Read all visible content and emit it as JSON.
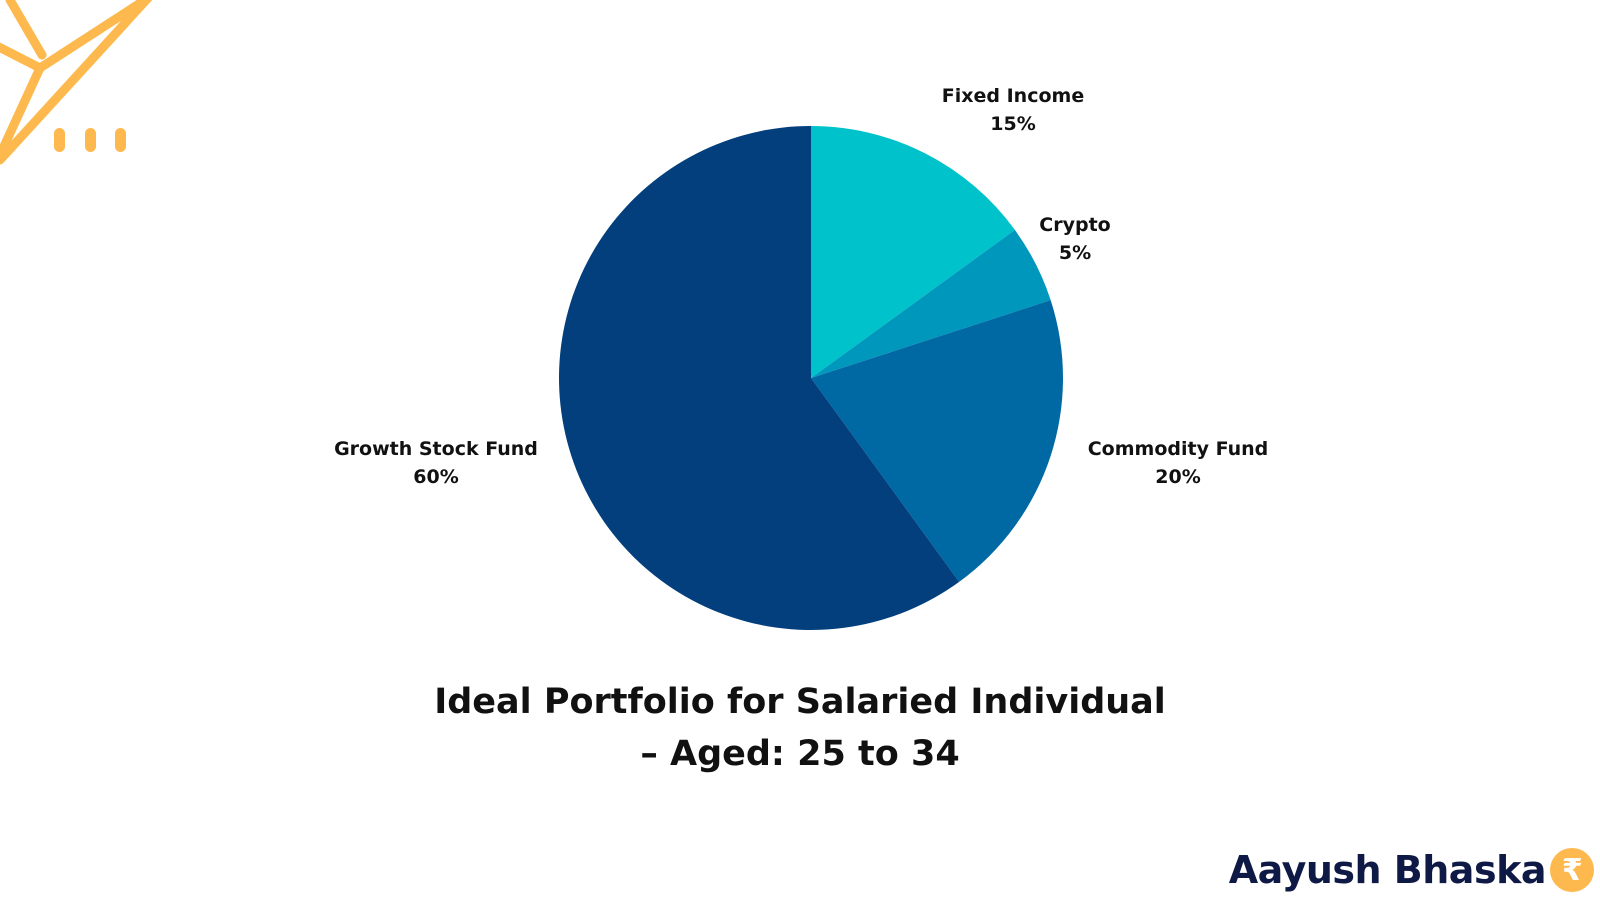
{
  "chart_data": {
    "type": "pie",
    "title": "Ideal Portfolio for Salaried Individual – Aged: 25 to 34",
    "title_lines": [
      "Ideal Portfolio for Salaried Individual",
      "– Aged: 25 to 34"
    ],
    "slices": [
      {
        "name": "Fixed Income",
        "value": 15,
        "label": "15%",
        "color": "#00c2cb"
      },
      {
        "name": "Crypto",
        "value": 5,
        "label": "5%",
        "color": "#0097bd"
      },
      {
        "name": "Commodity Fund",
        "value": 20,
        "label": "20%",
        "color": "#0069a4"
      },
      {
        "name": "Growth Stock Fund",
        "value": 60,
        "label": "60%",
        "color": "#023f7c"
      }
    ],
    "start_angle": "12 o'clock",
    "direction": "clockwise",
    "legend": "none (labels beside slices)"
  },
  "brand": {
    "name": "Aayush Bhaska",
    "coin_icon": "rupee-coin-icon",
    "coin_glyph": "₹"
  },
  "decoration": {
    "accent_color": "#fdb94e",
    "icon": "paper-plane-icon"
  }
}
